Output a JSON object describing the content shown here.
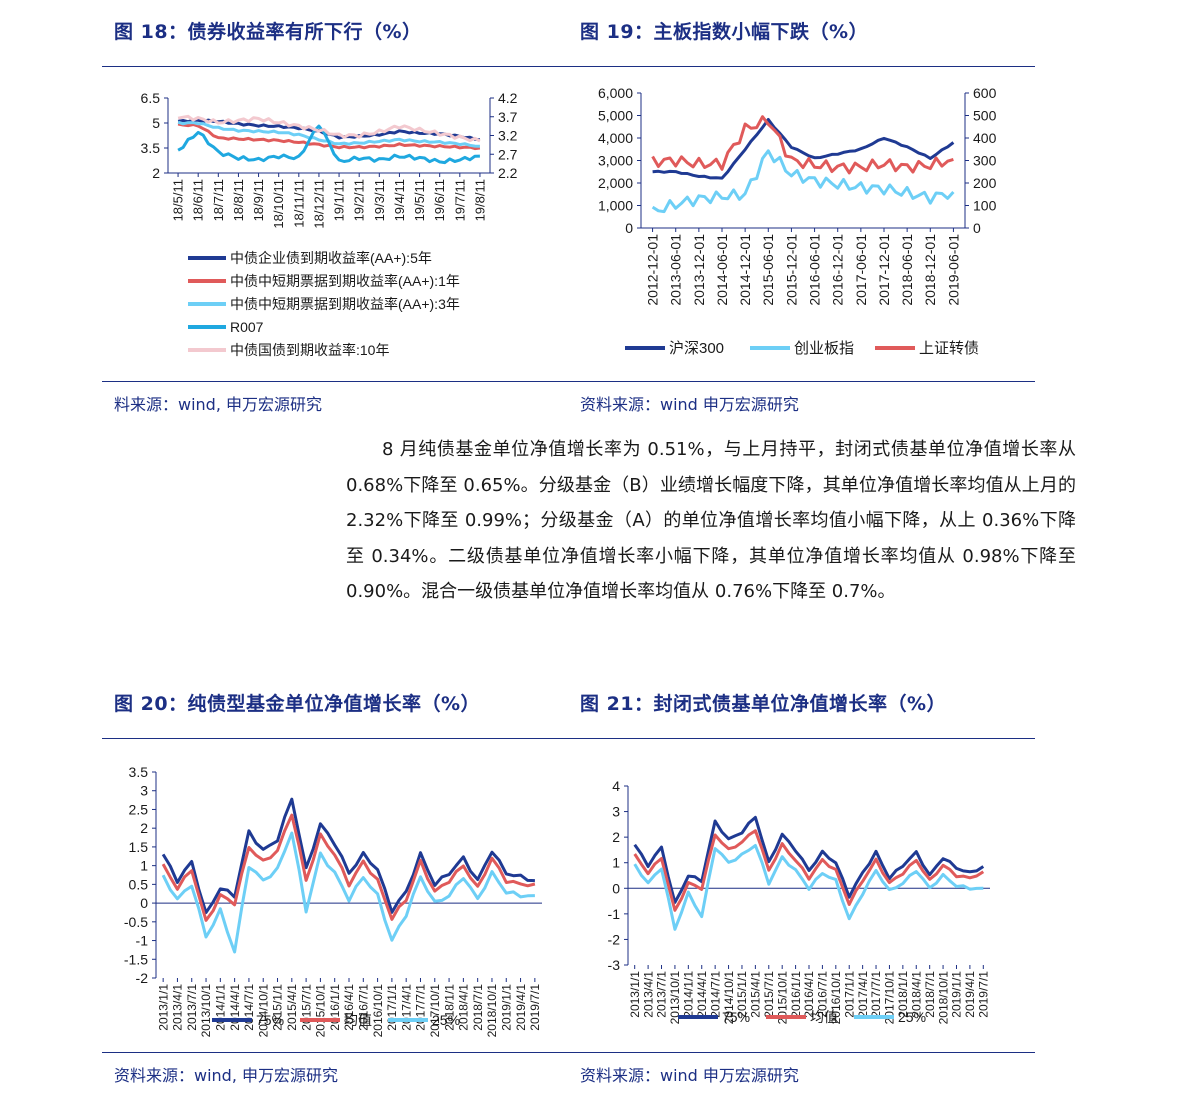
{
  "top": {
    "fig18_title": "图 18：债券收益率有所下行（%）",
    "fig19_title": "图 19：主板指数小幅下跌（%）",
    "fig18_source": "料来源：wind, 申万宏源研究",
    "fig19_source": "资料来源：wind 申万宏源研究"
  },
  "bottom": {
    "fig20_title": "图 20：纯债型基金单位净值增长率（%）",
    "fig21_title": "图 21：封闭式债基单位净值增长率（%）",
    "fig20_source": "资料来源：wind, 申万宏源研究",
    "fig21_source": "资料来源：wind 申万宏源研究"
  },
  "paragraph": "8 月纯债基金单位净值增长率为 0.51%，与上月持平，封闭式债基单位净值增长率从 0.68%下降至 0.65%。分级基金（B）业绩增长幅度下降，其单位净值增长率均值从上月的 2.32%下降至 0.99%；分级基金（A）的单位净值增长率均值小幅下降，从上 0.36%下降至 0.34%。二级债基单位净值增长率小幅下降，其单位净值增长率均值从 0.98%下降至 0.90%。混合一级债基单位净值增长率均值从 0.76%下降至 0.7%。",
  "colors": {
    "navy": "#1c2f84",
    "dark_blue": "#1f3a93",
    "red": "#e05a5a",
    "light_blue": "#6dcff6",
    "cyan": "#1fa8e0",
    "pink": "#f3c9cf"
  },
  "chart_data": [
    {
      "id": "fig18",
      "type": "line",
      "title": "图 18：债券收益率有所下行（%）",
      "left_axis": {
        "ylim": [
          2,
          6.5
        ],
        "ticks": [
          "6.5",
          "5",
          "3.5",
          "2"
        ]
      },
      "right_axis": {
        "ylim": [
          2.2,
          4.2
        ],
        "ticks": [
          "4.2",
          "3.7",
          "3.2",
          "2.7",
          "2.2"
        ]
      },
      "categories": [
        "18/5/11",
        "18/6/11",
        "18/7/11",
        "18/8/11",
        "18/9/11",
        "18/10/11",
        "18/11/11",
        "18/12/11",
        "19/1/11",
        "19/2/11",
        "19/3/11",
        "19/4/11",
        "19/5/11",
        "19/6/11",
        "19/7/11",
        "19/8/11"
      ],
      "series": [
        {
          "name": "中债企业债到期收益率(AA+):5年",
          "color": "#1f3a93",
          "axis": "left",
          "values": [
            5.1,
            5.15,
            5.1,
            4.95,
            4.85,
            4.8,
            4.7,
            4.5,
            4.15,
            4.2,
            4.3,
            4.5,
            4.4,
            4.35,
            4.2,
            4.0
          ]
        },
        {
          "name": "中债中短期票据到期收益率(AA+):1年",
          "color": "#e05a5a",
          "axis": "left",
          "values": [
            4.9,
            4.85,
            4.1,
            4.05,
            4.0,
            3.95,
            3.85,
            3.7,
            3.55,
            3.55,
            3.6,
            3.7,
            3.65,
            3.6,
            3.55,
            3.5
          ]
        },
        {
          "name": "中债中短期票据到期收益率(AA+):3年",
          "color": "#6dcff6",
          "axis": "left",
          "values": [
            5.0,
            5.0,
            4.7,
            4.55,
            4.5,
            4.45,
            4.3,
            4.0,
            3.75,
            3.8,
            3.9,
            4.0,
            3.9,
            3.85,
            3.75,
            3.6
          ]
        },
        {
          "name": "R007",
          "color": "#1fa8e0",
          "axis": "right",
          "values": [
            2.8,
            3.3,
            2.75,
            2.6,
            2.55,
            2.65,
            2.6,
            3.5,
            2.5,
            2.6,
            2.55,
            2.65,
            2.6,
            2.5,
            2.55,
            2.65
          ]
        },
        {
          "name": "中债国债到期收益率:10年",
          "color": "#f3c9cf",
          "axis": "right",
          "values": [
            3.7,
            3.65,
            3.55,
            3.6,
            3.65,
            3.55,
            3.45,
            3.35,
            3.2,
            3.2,
            3.3,
            3.45,
            3.35,
            3.25,
            3.15,
            3.05
          ]
        }
      ]
    },
    {
      "id": "fig19",
      "type": "line",
      "title": "图 19：主板指数小幅下跌（%）",
      "left_axis": {
        "ylim": [
          0,
          6000
        ],
        "ticks": [
          "6,000",
          "5,000",
          "4,000",
          "3,000",
          "2,000",
          "1,000",
          "0"
        ]
      },
      "right_axis": {
        "ylim": [
          0,
          600
        ],
        "ticks": [
          "600",
          "500",
          "400",
          "300",
          "200",
          "100",
          "0"
        ]
      },
      "categories": [
        "2012-12-01",
        "2013-06-01",
        "2013-12-01",
        "2014-06-01",
        "2014-12-01",
        "2015-06-01",
        "2015-12-01",
        "2016-06-01",
        "2016-12-01",
        "2017-06-01",
        "2017-12-01",
        "2018-06-01",
        "2018-12-01",
        "2019-06-01"
      ],
      "series": [
        {
          "name": "沪深300",
          "color": "#1f3a93",
          "axis": "left",
          "values": [
            2500,
            2500,
            2300,
            2200,
            3500,
            4800,
            3600,
            3100,
            3300,
            3500,
            4000,
            3600,
            3100,
            3800
          ]
        },
        {
          "name": "创业板指",
          "color": "#6dcff6",
          "axis": "right",
          "values": [
            72,
            105,
            130,
            140,
            150,
            340,
            240,
            210,
            195,
            180,
            175,
            155,
            135,
            160
          ]
        },
        {
          "name": "上证转债",
          "color": "#e05a5a",
          "axis": "right",
          "values": [
            295,
            300,
            285,
            285,
            440,
            480,
            300,
            280,
            270,
            270,
            285,
            270,
            280,
            305
          ]
        }
      ]
    },
    {
      "id": "fig20",
      "type": "line",
      "title": "图 20：纯债型基金单位净值增长率（%）",
      "ylim": [
        -2,
        3.5
      ],
      "yticks": [
        "3.5",
        "3",
        "2.5",
        "2",
        "1.5",
        "1",
        "0.5",
        "0",
        "-0.5",
        "-1",
        "-1.5",
        "-2"
      ],
      "categories": [
        "2013/1/1",
        "2013/4/1",
        "2013/7/1",
        "2013/10/1",
        "2014/1/1",
        "2014/4/1",
        "2014/7/1",
        "2014/10/1",
        "2015/1/1",
        "2015/4/1",
        "2015/7/1",
        "2015/10/1",
        "2016/1/1",
        "2016/4/1",
        "2016/7/1",
        "2016/10/1",
        "2017/1/1",
        "2017/4/1",
        "2017/7/1",
        "2017/10/1",
        "2018/1/1",
        "2018/4/1",
        "2018/7/1",
        "2018/10/1",
        "2019/1/1",
        "2019/4/1",
        "2019/7/1"
      ],
      "series": [
        {
          "name": "75%",
          "color": "#1f3a93",
          "values": [
            1.3,
            0.6,
            1.1,
            -0.3,
            0.4,
            0.2,
            1.9,
            1.4,
            1.7,
            2.8,
            0.9,
            2.1,
            1.6,
            0.8,
            1.3,
            0.9,
            -0.2,
            0.3,
            1.3,
            0.5,
            0.8,
            1.2,
            0.6,
            1.4,
            0.8,
            0.7,
            0.6
          ]
        },
        {
          "name": "均值",
          "color": "#e05a5a",
          "values": [
            1.0,
            0.4,
            0.9,
            -0.5,
            0.2,
            0.0,
            1.5,
            1.1,
            1.4,
            2.4,
            0.6,
            1.8,
            1.3,
            0.5,
            1.1,
            0.6,
            -0.4,
            0.1,
            1.1,
            0.3,
            0.6,
            1.0,
            0.4,
            1.2,
            0.6,
            0.5,
            0.51
          ]
        },
        {
          "name": "25%",
          "color": "#6dcff6",
          "values": [
            0.7,
            0.1,
            0.5,
            -0.9,
            -0.2,
            -1.3,
            1.0,
            0.6,
            0.9,
            1.9,
            -0.2,
            1.3,
            0.8,
            0.1,
            0.7,
            0.2,
            -1.0,
            -0.3,
            0.7,
            0.0,
            0.2,
            0.7,
            0.1,
            0.8,
            0.3,
            0.2,
            0.2
          ]
        }
      ]
    },
    {
      "id": "fig21",
      "type": "line",
      "title": "图 21：封闭式债基单位净值增长率（%）",
      "ylim": [
        -3,
        4
      ],
      "yticks": [
        "4",
        "3",
        "2",
        "1",
        "0",
        "-1",
        "-2",
        "-3"
      ],
      "categories": [
        "2013/1/1",
        "2013/4/1",
        "2013/7/1",
        "2013/10/1",
        "2014/1/1",
        "2014/4/1",
        "2014/7/1",
        "2014/10/1",
        "2015/1/1",
        "2015/4/1",
        "2015/7/1",
        "2015/10/1",
        "2016/1/1",
        "2016/4/1",
        "2016/7/1",
        "2016/10/1",
        "2017/1/1",
        "2017/4/1",
        "2017/7/1",
        "2017/10/1",
        "2018/1/1",
        "2018/4/1",
        "2018/7/1",
        "2018/10/1",
        "2019/1/1",
        "2019/4/1",
        "2019/7/1"
      ],
      "series": [
        {
          "name": "75%",
          "color": "#1f3a93",
          "values": [
            1.7,
            0.9,
            1.6,
            -0.6,
            0.5,
            0.3,
            2.6,
            1.9,
            2.2,
            2.8,
            1.0,
            2.1,
            1.5,
            0.7,
            1.4,
            1.0,
            -0.3,
            0.6,
            1.4,
            0.4,
            0.9,
            1.4,
            0.5,
            1.2,
            0.8,
            0.6,
            0.85
          ]
        },
        {
          "name": "均值",
          "color": "#e05a5a",
          "values": [
            1.3,
            0.6,
            1.2,
            -0.9,
            0.2,
            0.0,
            2.1,
            1.5,
            1.8,
            2.3,
            0.7,
            1.7,
            1.1,
            0.4,
            1.1,
            0.7,
            -0.6,
            0.3,
            1.1,
            0.2,
            0.6,
            1.1,
            0.3,
            0.9,
            0.5,
            0.4,
            0.65
          ]
        },
        {
          "name": "25%",
          "color": "#6dcff6",
          "values": [
            0.9,
            0.2,
            0.8,
            -1.6,
            -0.2,
            -1.1,
            1.6,
            1.0,
            1.3,
            1.7,
            0.2,
            1.2,
            0.7,
            0.0,
            0.6,
            0.3,
            -1.2,
            -0.2,
            0.7,
            -0.1,
            0.2,
            0.7,
            0.0,
            0.5,
            0.1,
            0.0,
            0.0
          ]
        }
      ]
    }
  ]
}
